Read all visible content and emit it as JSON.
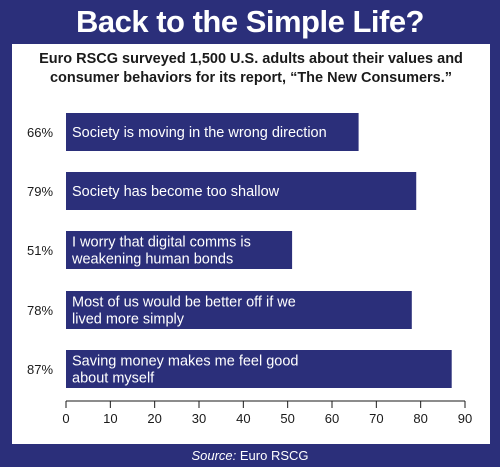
{
  "title": "Back to the Simple Life?",
  "subtitle_line1": "Euro RSCG surveyed 1,500 U.S. adults about their values and",
  "subtitle_line2": "consumer behaviors for its report, “The New Consumers.”",
  "source_label": "Source:",
  "source_value": "Euro RSCG",
  "colors": {
    "frame": "#2b2f7a",
    "bar": "#2b2f7a",
    "bar_text": "#ffffff",
    "panel": "#ffffff"
  },
  "chart_data": {
    "type": "bar",
    "orientation": "horizontal",
    "categories": [
      [
        "Society is moving in the wrong direction"
      ],
      [
        "Society has become too shallow"
      ],
      [
        "I worry that digital comms is",
        "weakening human bonds"
      ],
      [
        "Most of us would be better off if we",
        "lived more simply"
      ],
      [
        "Saving money makes me feel good",
        "about myself"
      ]
    ],
    "values": [
      66,
      79,
      51,
      78,
      87
    ],
    "value_labels": [
      "66%",
      "79%",
      "51%",
      "78%",
      "87%"
    ],
    "xlim": [
      0,
      90
    ],
    "xticks": [
      0,
      10,
      20,
      30,
      40,
      50,
      60,
      70,
      80,
      90
    ],
    "grid": false,
    "legend": "none"
  }
}
